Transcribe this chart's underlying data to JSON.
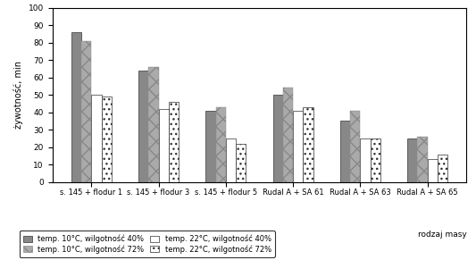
{
  "categories": [
    "s. 145 + flodur 1",
    "s. 145 + flodur 3",
    "s. 145 + flodur 5",
    "Rudal A + SA 61",
    "Rudal A + SA 63",
    "Rudal A + SA 65"
  ],
  "series": [
    {
      "label": "temp. 10°C, wilgotność 40%",
      "values": [
        86,
        64,
        41,
        50,
        35,
        25
      ],
      "style": "solid_gray"
    },
    {
      "label": "temp. 10°C, wilgotność 72%",
      "values": [
        81,
        66,
        43,
        54,
        41,
        26
      ],
      "style": "checker"
    },
    {
      "label": "temp. 22°C, wilgotność 40%",
      "values": [
        50,
        42,
        25,
        41,
        25,
        13
      ],
      "style": "white_plain"
    },
    {
      "label": "temp. 22°C, wilgotność 72%",
      "values": [
        49,
        46,
        22,
        43,
        25,
        16
      ],
      "style": "white_dots"
    }
  ],
  "ylabel": "żywotność, min",
  "xlabel": "rodzaj masy",
  "ylim": [
    0,
    100
  ],
  "yticks": [
    0,
    10,
    20,
    30,
    40,
    50,
    60,
    70,
    80,
    90,
    100
  ],
  "bar_width": 0.15,
  "background_color": "#ffffff"
}
